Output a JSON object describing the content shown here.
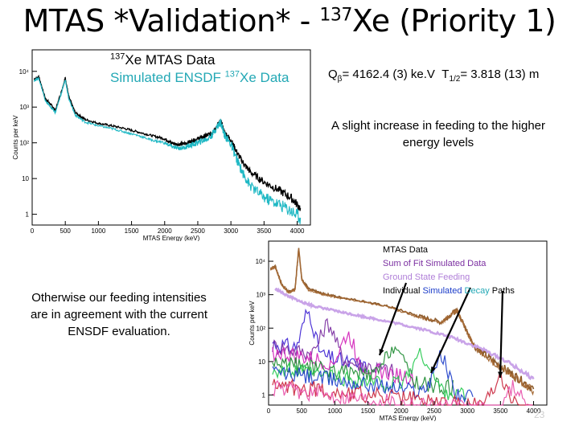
{
  "title": {
    "pre": "MTAS *Validation* - ",
    "isotope_mass": "137",
    "post": "Xe (Priority 1)"
  },
  "plot1": {
    "legend_mtas": {
      "mass": "137",
      "text": "Xe MTAS Data"
    },
    "legend_sim": {
      "text": "Simulated ENSDF ",
      "mass": "137",
      "text2": "Xe Data"
    },
    "colors": {
      "mtas": "#000000",
      "sim": "#1fb8c4"
    }
  },
  "info": {
    "q_symbol": "Q",
    "q_sub": "β",
    "q_value": "= 4162.4 (3) ke.V",
    "t_symbol": "T",
    "t_sub": "1/2",
    "t_value": "= 3.818 (13) m"
  },
  "note_slight": "A slight increase in feeding to the higher energy levels",
  "note_otherwise": "Otherwise our feeding intensities are in agreement with the current ENSDF evaluation.",
  "plot2": {
    "legend": {
      "mtas": "MTAS Data",
      "sum": "Sum of Fit Simulated Data",
      "ground": "Ground State Feeding",
      "individual_a": "Individual ",
      "individual_b": "Simulated ",
      "individual_c": "Decay ",
      "individual_d": "Paths"
    },
    "colors": {
      "mtas": "#8b5a2b",
      "sum": "#a66a35",
      "ground": "#c9a3e8"
    }
  },
  "page_number": "23",
  "chart_data": [
    {
      "type": "line",
      "xlabel": "MTAS Energy (keV)",
      "ylabel": "Counts per keV",
      "x_ticks": [
        0,
        500,
        1000,
        1500,
        2000,
        2500,
        3000,
        3500,
        4000
      ],
      "y_ticks": [
        "1",
        "10",
        "10²",
        "10³",
        "10⁴"
      ],
      "xlim": [
        0,
        4200
      ],
      "y_scale": "log",
      "ylim": [
        0.5,
        40000
      ],
      "series": [
        {
          "name": "¹³⁷Xe MTAS Data",
          "color": "#000000",
          "x": [
            30,
            100,
            200,
            280,
            350,
            450,
            500,
            550,
            650,
            800,
            1000,
            1200,
            1400,
            1600,
            1800,
            2000,
            2100,
            2200,
            2300,
            2400,
            2500,
            2600,
            2700,
            2800,
            2849,
            2900,
            3000,
            3100,
            3200,
            3300,
            3500,
            3700,
            3900,
            4050
          ],
          "y": [
            6000,
            7000,
            1700,
            1200,
            800,
            3000,
            6500,
            2000,
            700,
            450,
            350,
            300,
            250,
            200,
            160,
            130,
            100,
            90,
            95,
            110,
            130,
            150,
            180,
            320,
            400,
            200,
            120,
            50,
            25,
            15,
            8,
            5,
            3,
            1.5
          ]
        },
        {
          "name": "Simulated ENSDF ¹³⁷Xe Data",
          "color": "#1fb8c4",
          "x": [
            30,
            100,
            200,
            280,
            350,
            450,
            500,
            550,
            650,
            800,
            1000,
            1200,
            1400,
            1600,
            1800,
            2000,
            2100,
            2200,
            2300,
            2400,
            2500,
            2600,
            2700,
            2800,
            2849,
            2900,
            3000,
            3100,
            3200,
            3300,
            3500,
            3700,
            3900,
            4050
          ],
          "y": [
            5500,
            6500,
            1500,
            1000,
            700,
            2800,
            6000,
            1800,
            600,
            380,
            300,
            250,
            200,
            160,
            120,
            100,
            80,
            70,
            75,
            85,
            100,
            120,
            150,
            300,
            380,
            170,
            90,
            30,
            12,
            6,
            3,
            2,
            1.3,
            0.8
          ]
        }
      ]
    },
    {
      "type": "line",
      "xlabel": "MTAS Energy (keV)",
      "ylabel": "Counts per keV",
      "x_ticks": [
        0,
        500,
        1000,
        1500,
        2000,
        2500,
        3000,
        3500,
        4000
      ],
      "y_ticks": [
        "1",
        "10",
        "10²",
        "10³",
        "10⁴"
      ],
      "xlim": [
        0,
        4200
      ],
      "y_scale": "log",
      "ylim": [
        0.5,
        40000
      ],
      "series": [
        {
          "name": "MTAS Data",
          "color": "#8b5a2b",
          "x": [
            30,
            100,
            200,
            300,
            400,
            455,
            500,
            600,
            800,
            1000,
            1400,
            1800,
            2200,
            2600,
            2800,
            2849,
            2950,
            3100,
            3400,
            3700,
            4000
          ],
          "y": [
            6000,
            7000,
            2000,
            1200,
            1500,
            25000,
            3000,
            1500,
            1100,
            900,
            650,
            450,
            250,
            150,
            300,
            350,
            120,
            30,
            10,
            4,
            1.5
          ]
        },
        {
          "name": "Sum of Fit Simulated Data",
          "color": "#a66a35",
          "x": [
            30,
            100,
            200,
            300,
            400,
            455,
            500,
            600,
            800,
            1000,
            1400,
            1800,
            2200,
            2600,
            2800,
            2849,
            2950,
            3100,
            3400,
            3700,
            4000
          ],
          "y": [
            5800,
            6800,
            1900,
            1150,
            1400,
            24000,
            2900,
            1400,
            1050,
            860,
            620,
            430,
            240,
            145,
            290,
            340,
            115,
            28,
            9,
            3.5,
            1.3
          ]
        },
        {
          "name": "Ground State Feeding",
          "color": "#c9a3e8",
          "x": [
            100,
            300,
            500,
            700,
            1000,
            1300,
            1600,
            2000,
            2400,
            2800,
            3200,
            3600,
            4000
          ],
          "y": [
            1500,
            900,
            600,
            450,
            330,
            250,
            190,
            130,
            85,
            50,
            25,
            10,
            3
          ]
        }
      ]
    }
  ]
}
